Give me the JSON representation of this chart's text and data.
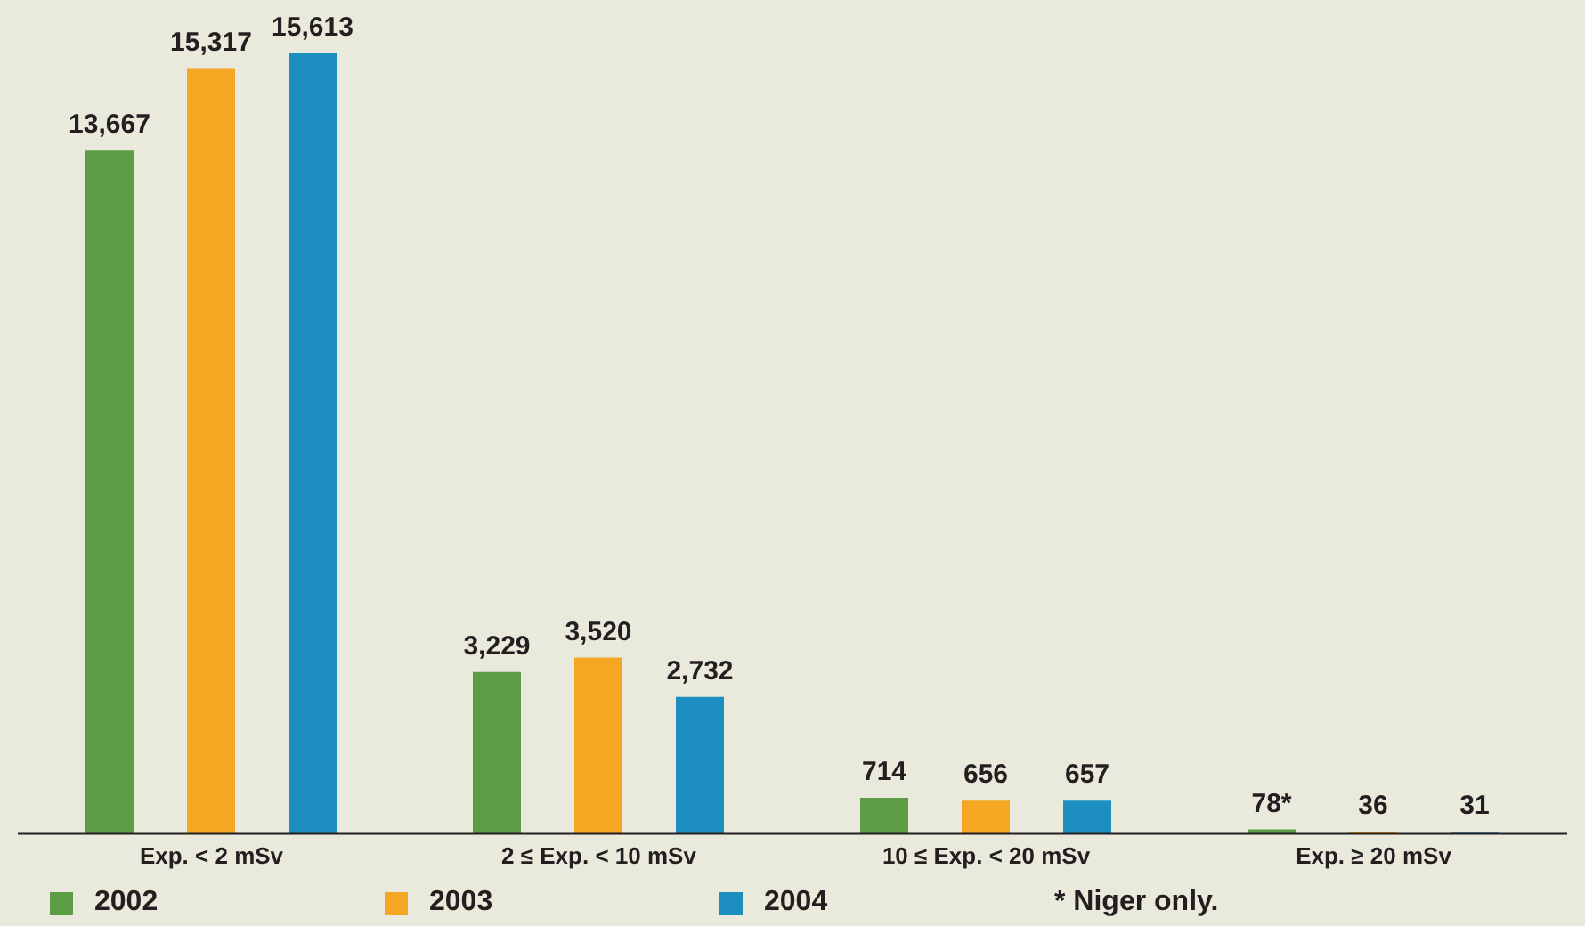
{
  "chart_data": {
    "type": "bar",
    "categories": [
      "Exp. < 2 mSv",
      "2 ≤ Exp. < 10 mSv",
      "10 ≤ Exp. < 20 mSv",
      "Exp. ≥ 20 mSv"
    ],
    "series": [
      {
        "name": "2002",
        "color": "#5b9c45",
        "values": [
          13667,
          3229,
          714,
          78
        ],
        "value_labels": [
          "13,667",
          "3,229",
          "714",
          "78*"
        ]
      },
      {
        "name": "2003",
        "color": "#f5a623",
        "values": [
          15317,
          3520,
          656,
          36
        ],
        "value_labels": [
          "15,317",
          "3,520",
          "656",
          "36"
        ]
      },
      {
        "name": "2004",
        "color": "#1c8fc0",
        "values": [
          15613,
          2732,
          657,
          31
        ],
        "value_labels": [
          "15,613",
          "2,732",
          "657",
          "31"
        ]
      }
    ],
    "legend": "bottom",
    "annotations": [
      "* Niger only."
    ],
    "grid": false
  }
}
